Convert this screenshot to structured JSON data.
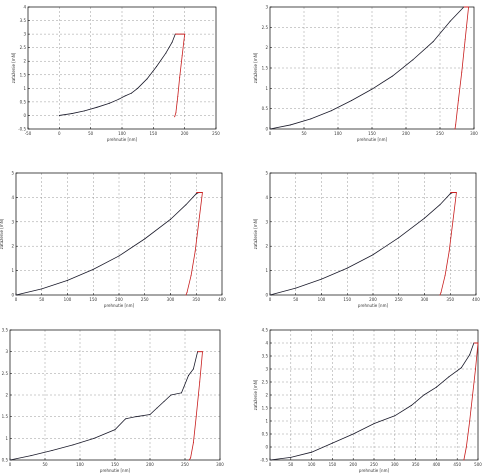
{
  "colors": {
    "loading": "#1a1a2a",
    "unloading": "#c81e1e",
    "grid": "#9a9a9a",
    "axes": "#000000"
  },
  "chart_data": [
    {
      "type": "line",
      "xlabel": "prehnutie [nm]",
      "ylabel": "zaťaženie [mN]",
      "xlim": [
        -50,
        250
      ],
      "ylim": [
        -0.5,
        4
      ],
      "xticks": [
        -50,
        0,
        50,
        100,
        150,
        200,
        250
      ],
      "yticks": [
        -0.5,
        0,
        0.5,
        1,
        1.5,
        2,
        2.5,
        3,
        3.5,
        4
      ],
      "grid": true,
      "series": [
        {
          "values": [
            [
              0,
              0
            ],
            [
              20,
              0.07
            ],
            [
              40,
              0.17
            ],
            [
              60,
              0.3
            ],
            [
              80,
              0.45
            ],
            [
              95,
              0.6
            ],
            [
              105,
              0.72
            ],
            [
              115,
              0.82
            ],
            [
              125,
              1.0
            ],
            [
              140,
              1.35
            ],
            [
              155,
              1.8
            ],
            [
              170,
              2.3
            ],
            [
              180,
              2.7
            ],
            [
              185,
              3.0
            ]
          ]
        },
        {
          "values": [
            [
              185,
              3.0
            ],
            [
              200,
              3.0
            ]
          ]
        },
        {
          "values": [
            [
              200,
              3.0
            ],
            [
              196,
              2.2
            ],
            [
              192,
              1.4
            ],
            [
              189,
              0.7
            ],
            [
              186,
              0.1
            ],
            [
              184,
              -0.05
            ]
          ]
        }
      ]
    },
    {
      "type": "line",
      "xlabel": "prehnutie [nm]",
      "ylabel": "zaťaženie [mN]",
      "xlim": [
        0,
        300
      ],
      "ylim": [
        0,
        3
      ],
      "xticks": [
        0,
        50,
        100,
        150,
        200,
        250,
        300
      ],
      "yticks": [
        0,
        0.5,
        1,
        1.5,
        2,
        2.5,
        3
      ],
      "grid": true,
      "series": [
        {
          "values": [
            [
              0,
              0
            ],
            [
              30,
              0.1
            ],
            [
              60,
              0.25
            ],
            [
              90,
              0.45
            ],
            [
              120,
              0.7
            ],
            [
              150,
              0.98
            ],
            [
              180,
              1.3
            ],
            [
              210,
              1.7
            ],
            [
              240,
              2.15
            ],
            [
              265,
              2.65
            ],
            [
              285,
              3.0
            ]
          ]
        },
        {
          "values": [
            [
              285,
              3.0
            ],
            [
              292,
              3.0
            ]
          ]
        },
        {
          "values": [
            [
              292,
              3.0
            ],
            [
              287,
              2.2
            ],
            [
              282,
              1.4
            ],
            [
              277,
              0.7
            ],
            [
              273,
              0.1
            ],
            [
              272,
              0
            ]
          ]
        }
      ]
    },
    {
      "type": "line",
      "xlabel": "prehnutie [nm]",
      "ylabel": "zaťaženie [mN]",
      "xlim": [
        0,
        400
      ],
      "ylim": [
        0,
        5
      ],
      "xticks": [
        0,
        50,
        100,
        150,
        200,
        250,
        300,
        350,
        400
      ],
      "yticks": [
        0,
        1,
        2,
        3,
        4,
        5
      ],
      "grid": true,
      "series": [
        {
          "values": [
            [
              0,
              0
            ],
            [
              50,
              0.25
            ],
            [
              100,
              0.6
            ],
            [
              150,
              1.05
            ],
            [
              200,
              1.6
            ],
            [
              250,
              2.3
            ],
            [
              300,
              3.1
            ],
            [
              330,
              3.7
            ],
            [
              350,
              4.15
            ],
            [
              355,
              4.2
            ]
          ]
        },
        {
          "values": [
            [
              350,
              4.2
            ],
            [
              362,
              4.2
            ]
          ]
        },
        {
          "values": [
            [
              362,
              4.2
            ],
            [
              355,
              3.0
            ],
            [
              348,
              1.8
            ],
            [
              340,
              0.8
            ],
            [
              332,
              0.1
            ],
            [
              330,
              0
            ]
          ]
        }
      ]
    },
    {
      "type": "line",
      "xlabel": "prehnutie [nm]",
      "ylabel": "zaťaženie [mN]",
      "xlim": [
        0,
        400
      ],
      "ylim": [
        0,
        5
      ],
      "xticks": [
        0,
        50,
        100,
        150,
        200,
        250,
        300,
        350,
        400
      ],
      "yticks": [
        0,
        1,
        2,
        3,
        4,
        5
      ],
      "grid": true,
      "series": [
        {
          "values": [
            [
              0,
              0
            ],
            [
              50,
              0.28
            ],
            [
              100,
              0.65
            ],
            [
              150,
              1.1
            ],
            [
              200,
              1.65
            ],
            [
              250,
              2.35
            ],
            [
              300,
              3.15
            ],
            [
              330,
              3.7
            ],
            [
              350,
              4.15
            ],
            [
              355,
              4.2
            ]
          ]
        },
        {
          "values": [
            [
              350,
              4.2
            ],
            [
              362,
              4.2
            ]
          ]
        },
        {
          "values": [
            [
              362,
              4.2
            ],
            [
              355,
              3.0
            ],
            [
              348,
              1.8
            ],
            [
              340,
              0.8
            ],
            [
              332,
              0.1
            ],
            [
              330,
              0
            ]
          ]
        }
      ]
    },
    {
      "type": "line",
      "xlabel": "prehnutie [nm]",
      "ylabel": "zaťaženie [mN]",
      "xlim": [
        0,
        300
      ],
      "ylim": [
        0.5,
        3.5
      ],
      "xticks": [
        0,
        50,
        100,
        150,
        200,
        250,
        300
      ],
      "yticks": [
        0.5,
        1,
        1.5,
        2,
        2.5,
        3,
        3.5
      ],
      "grid": true,
      "series": [
        {
          "values": [
            [
              0,
              0.5
            ],
            [
              30,
              0.6
            ],
            [
              60,
              0.72
            ],
            [
              90,
              0.85
            ],
            [
              120,
              1.0
            ],
            [
              150,
              1.2
            ],
            [
              165,
              1.45
            ],
            [
              180,
              1.5
            ],
            [
              200,
              1.55
            ],
            [
              210,
              1.7
            ],
            [
              220,
              1.85
            ],
            [
              230,
              2.0
            ],
            [
              245,
              2.05
            ],
            [
              255,
              2.45
            ],
            [
              262,
              2.6
            ],
            [
              268,
              3.0
            ]
          ]
        },
        {
          "values": [
            [
              268,
              3.0
            ],
            [
              275,
              3.0
            ]
          ]
        },
        {
          "values": [
            [
              275,
              3.0
            ],
            [
              271,
              2.3
            ],
            [
              266,
              1.5
            ],
            [
              262,
              0.9
            ],
            [
              258,
              0.55
            ],
            [
              256,
              0.5
            ]
          ]
        }
      ]
    },
    {
      "type": "line",
      "xlabel": "prehnutie [nm]",
      "ylabel": "zaťaženie [mN]",
      "xlim": [
        0,
        500
      ],
      "ylim": [
        -0.5,
        4.5
      ],
      "xticks": [
        0,
        50,
        100,
        150,
        200,
        250,
        300,
        350,
        400,
        450,
        500
      ],
      "yticks": [
        -0.5,
        0,
        0.5,
        1,
        1.5,
        2,
        2.5,
        3,
        3.5,
        4,
        4.5
      ],
      "grid": true,
      "series": [
        {
          "values": [
            [
              0,
              -0.5
            ],
            [
              50,
              -0.4
            ],
            [
              100,
              -0.2
            ],
            [
              150,
              0.15
            ],
            [
              200,
              0.5
            ],
            [
              250,
              0.9
            ],
            [
              300,
              1.2
            ],
            [
              340,
              1.6
            ],
            [
              370,
              2.0
            ],
            [
              400,
              2.3
            ],
            [
              430,
              2.7
            ],
            [
              460,
              3.05
            ],
            [
              480,
              3.55
            ],
            [
              490,
              4.0
            ]
          ]
        },
        {
          "values": [
            [
              490,
              4.0
            ],
            [
              500,
              4.0
            ]
          ]
        },
        {
          "values": [
            [
              500,
              4.0
            ],
            [
              494,
              3.0
            ],
            [
              487,
              2.0
            ],
            [
              480,
              1.0
            ],
            [
              472,
              0.0
            ],
            [
              466,
              -0.5
            ]
          ]
        }
      ]
    }
  ]
}
